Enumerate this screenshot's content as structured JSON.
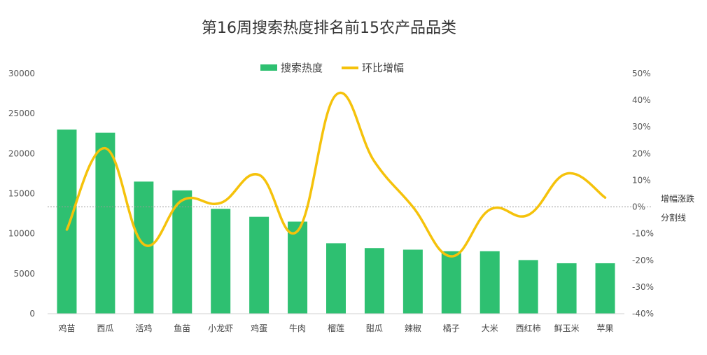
{
  "chart_data": {
    "type": "bar",
    "title": "第16周搜索热度排名前15农产品品类",
    "categories": [
      "鸡苗",
      "西瓜",
      "活鸡",
      "鱼苗",
      "小龙虾",
      "鸡蛋",
      "牛肉",
      "榴莲",
      "甜瓜",
      "辣椒",
      "橘子",
      "大米",
      "西红柿",
      "鲜玉米",
      "苹果"
    ],
    "series": [
      {
        "name": "搜索热度",
        "type": "bar",
        "axis": "left",
        "color": "#2ec071",
        "values": [
          23000,
          22600,
          16500,
          15400,
          13100,
          12100,
          11500,
          8800,
          8200,
          8000,
          7800,
          7800,
          6700,
          6300,
          6300
        ]
      },
      {
        "name": "环比增幅",
        "type": "line",
        "axis": "right",
        "color": "#f5c20b",
        "smooth": true,
        "values": [
          -8.5,
          22,
          -14,
          2.5,
          1.5,
          12,
          -9,
          42,
          17,
          0,
          -18.5,
          -1,
          -3,
          12.5,
          3.5
        ]
      }
    ],
    "y_left": {
      "min": 0,
      "max": 30000,
      "ticks": [
        "0",
        "5000",
        "10000",
        "15000",
        "20000",
        "25000",
        "30000"
      ]
    },
    "y_right": {
      "min": -40,
      "max": 50,
      "ticks": [
        "-40%",
        "-30%",
        "-20%",
        "-10%",
        "0%",
        "10%",
        "20%",
        "30%",
        "40%",
        "50%"
      ]
    },
    "reference_line": {
      "value": 0,
      "axis": "right",
      "style": "dashed",
      "label_lines": [
        "增幅涨跌",
        "分割线"
      ]
    },
    "legend": {
      "position": "top-center"
    },
    "grid": false
  }
}
